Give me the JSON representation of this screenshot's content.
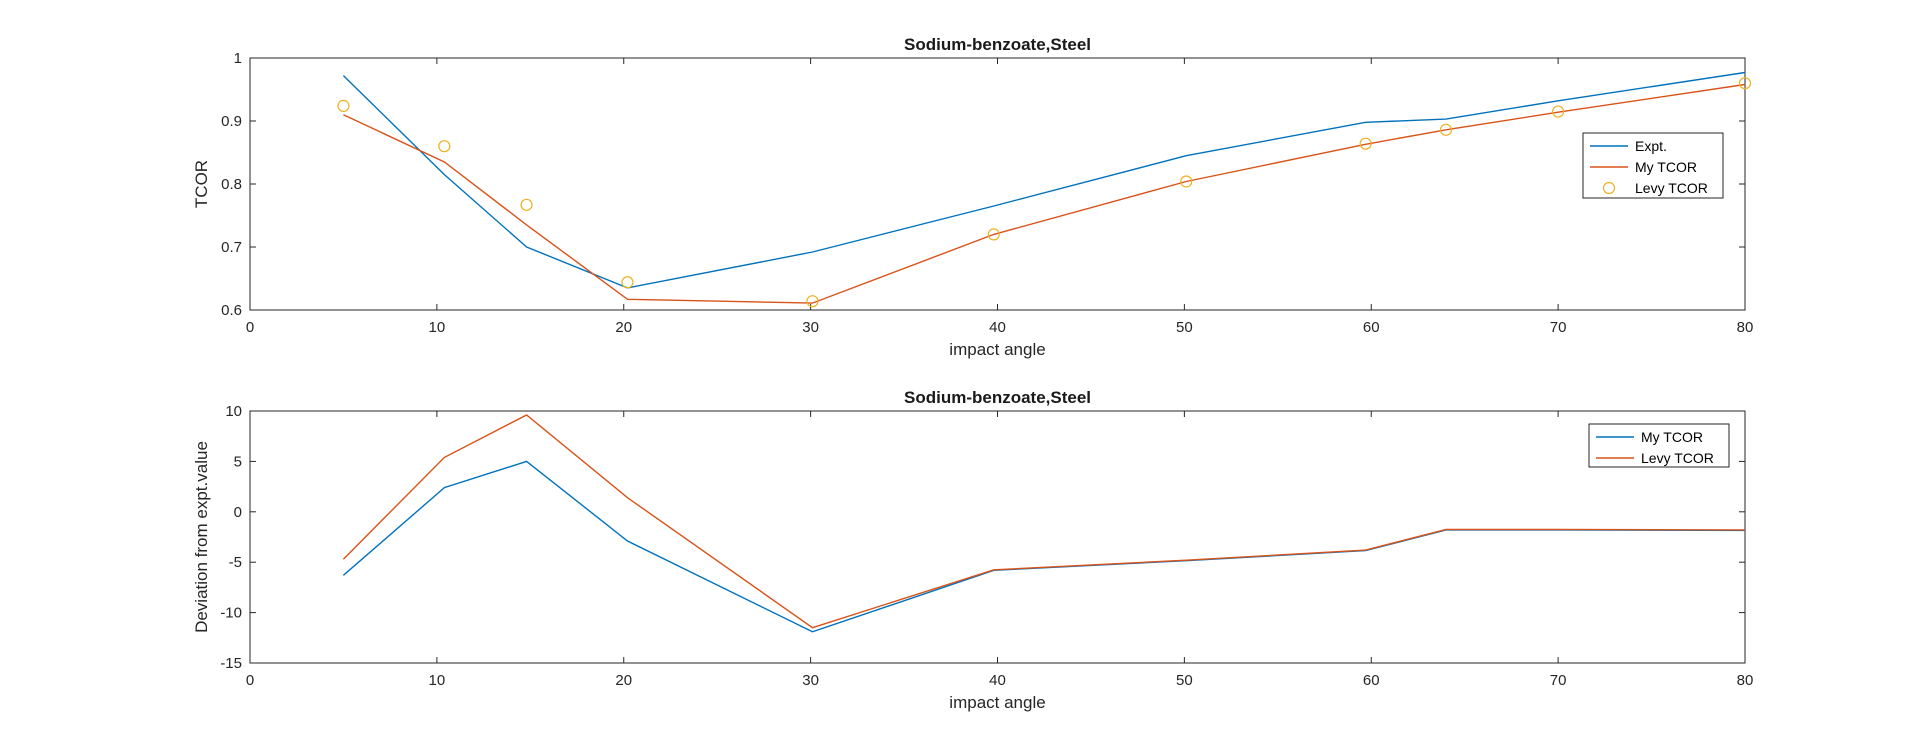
{
  "chart_data": [
    {
      "type": "line",
      "title": "Sodium-benzoate,Steel",
      "xlabel": "impact angle",
      "ylabel": "TCOR",
      "xlim": [
        0,
        80
      ],
      "ylim": [
        0.6,
        1
      ],
      "xticks": [
        "0",
        "10",
        "20",
        "30",
        "40",
        "50",
        "60",
        "70",
        "80"
      ],
      "yticks": [
        "0.6",
        "0.7",
        "0.8",
        "0.9",
        "1"
      ],
      "legend_position": "right",
      "series": [
        {
          "name": "Expt.",
          "style": "line",
          "color": "#0072BD",
          "x": [
            5,
            10.4,
            14.8,
            20.2,
            30.1,
            39.8,
            50.1,
            59.7,
            64,
            70,
            80
          ],
          "y": [
            0.972,
            0.815,
            0.7,
            0.635,
            0.692,
            0.765,
            0.845,
            0.898,
            0.903,
            0.932,
            0.977
          ]
        },
        {
          "name": "My TCOR",
          "style": "line",
          "color": "#D95319",
          "x": [
            5,
            10.4,
            14.8,
            20.2,
            30.1,
            39.8,
            50.1,
            59.7,
            64,
            70,
            80
          ],
          "y": [
            0.91,
            0.835,
            0.735,
            0.617,
            0.611,
            0.72,
            0.804,
            0.863,
            0.886,
            0.914,
            0.958
          ]
        },
        {
          "name": "Levy TCOR",
          "style": "markers",
          "color": "#EDB120",
          "x": [
            5,
            10.4,
            14.8,
            20.2,
            30.1,
            39.8,
            50.1,
            59.7,
            64,
            70,
            80
          ],
          "y": [
            0.924,
            0.86,
            0.767,
            0.644,
            0.614,
            0.72,
            0.804,
            0.864,
            0.886,
            0.915,
            0.96
          ]
        }
      ]
    },
    {
      "type": "line",
      "title": "Sodium-benzoate,Steel",
      "xlabel": "impact angle",
      "ylabel": "Deviation from expt.value",
      "xlim": [
        0,
        80
      ],
      "ylim": [
        -15,
        10
      ],
      "xticks": [
        "0",
        "10",
        "20",
        "30",
        "40",
        "50",
        "60",
        "70",
        "80"
      ],
      "yticks": [
        "-15",
        "-10",
        "-5",
        "0",
        "5",
        "10"
      ],
      "legend_position": "top-right",
      "series": [
        {
          "name": "My TCOR",
          "style": "line",
          "color": "#0072BD",
          "x": [
            5,
            10.4,
            14.8,
            20.2,
            30.1,
            39.8,
            50.1,
            59.7,
            64,
            70,
            80
          ],
          "y": [
            -6.3,
            2.4,
            5.0,
            -2.9,
            -11.9,
            -5.8,
            -4.85,
            -3.85,
            -1.8,
            -1.8,
            -1.85
          ]
        },
        {
          "name": "Levy TCOR",
          "style": "line",
          "color": "#D95319",
          "x": [
            5,
            10.4,
            14.8,
            20.2,
            30.1,
            39.8,
            50.1,
            59.7,
            64,
            70,
            80
          ],
          "y": [
            -4.7,
            5.4,
            9.6,
            1.4,
            -11.5,
            -5.75,
            -4.8,
            -3.8,
            -1.75,
            -1.75,
            -1.8
          ]
        }
      ]
    }
  ]
}
